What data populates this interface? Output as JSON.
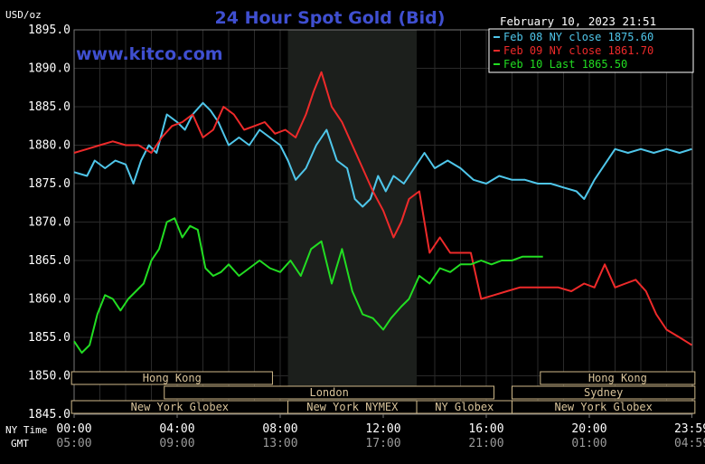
{
  "chart_data": {
    "type": "line",
    "title": "24 Hour Spot Gold (Bid)",
    "ylabel": "USD/oz",
    "ylim": [
      1845,
      1895
    ],
    "yticks": [
      "1895.0",
      "1890.0",
      "1885.0",
      "1880.0",
      "1875.0",
      "1870.0",
      "1865.0",
      "1860.0",
      "1855.0",
      "1850.0",
      "1845.0"
    ],
    "xlim": [
      0,
      24
    ],
    "x_ticks_ny": [
      "00:00",
      "04:00",
      "08:00",
      "12:00",
      "16:00",
      "20:00",
      "23:59"
    ],
    "x_ticks_gmt": [
      "05:00",
      "09:00",
      "13:00",
      "17:00",
      "21:00",
      "01:00",
      "04:59"
    ],
    "x_tick_hours": [
      0,
      4,
      8,
      12,
      16,
      20,
      23.983
    ],
    "ny_time_label": "NY Time",
    "gmt_label": "GMT",
    "timestamp": "February 10, 2023 21:51",
    "watermark": "www.kitco.com",
    "grid": true,
    "legend_placement": "top-right",
    "highlight_hours": [
      8.3,
      13.3
    ],
    "series": [
      {
        "name": "Feb 08 NY close 1875.60",
        "color": "#4fc6ea",
        "x": [
          0,
          0.5,
          0.8,
          1.2,
          1.6,
          2,
          2.3,
          2.6,
          2.9,
          3.2,
          3.6,
          4.0,
          4.3,
          4.6,
          5.0,
          5.3,
          5.6,
          6.0,
          6.4,
          6.8,
          7.2,
          7.6,
          8.0,
          8.3,
          8.6,
          9.0,
          9.4,
          9.8,
          10.2,
          10.6,
          10.9,
          11.2,
          11.5,
          11.8,
          12.1,
          12.4,
          12.8,
          13.2,
          13.6,
          14.0,
          14.5,
          15.0,
          15.5,
          16.0,
          16.5,
          17.0,
          17.5,
          18.0,
          18.5,
          19.0,
          19.5,
          19.8,
          20.2,
          20.6,
          21.0,
          21.5,
          22.0,
          22.5,
          23.0,
          23.5,
          23.98
        ],
        "y": [
          1876.5,
          1876,
          1878,
          1877,
          1878,
          1877.5,
          1875,
          1878,
          1880,
          1879,
          1884,
          1883,
          1882,
          1884,
          1885.5,
          1884.5,
          1883,
          1880,
          1881,
          1880,
          1882,
          1881,
          1880,
          1878,
          1875.5,
          1877,
          1880,
          1882,
          1878,
          1877,
          1873,
          1872,
          1873,
          1876,
          1874,
          1876,
          1875,
          1877,
          1879,
          1877,
          1878,
          1877,
          1875.5,
          1875,
          1876,
          1875.5,
          1875.5,
          1875,
          1875,
          1874.5,
          1874,
          1873,
          1875.5,
          1877.5,
          1879.5,
          1879,
          1879.5,
          1879,
          1879.5,
          1879,
          1879.5
        ]
      },
      {
        "name": "Feb 09 NY close 1861.70",
        "color": "#ee2a2a",
        "x": [
          0,
          0.5,
          1.0,
          1.5,
          2.0,
          2.5,
          3.0,
          3.4,
          3.8,
          4.2,
          4.6,
          5.0,
          5.4,
          5.8,
          6.2,
          6.6,
          7.0,
          7.4,
          7.8,
          8.2,
          8.6,
          9.0,
          9.3,
          9.6,
          10.0,
          10.4,
          10.8,
          11.2,
          11.6,
          12.0,
          12.4,
          12.7,
          13.0,
          13.4,
          13.8,
          14.2,
          14.6,
          15.0,
          15.4,
          15.8,
          16.3,
          16.8,
          17.3,
          17.8,
          18.3,
          18.8,
          19.3,
          19.8,
          20.2,
          20.6,
          21.0,
          21.4,
          21.8,
          22.2,
          22.6,
          23.0,
          23.5,
          23.98
        ],
        "y": [
          1879,
          1879.5,
          1880,
          1880.5,
          1880,
          1880,
          1879,
          1881,
          1882.5,
          1883,
          1884,
          1881,
          1882,
          1885,
          1884,
          1882,
          1882.5,
          1883,
          1881.5,
          1882,
          1881,
          1884,
          1887,
          1889.5,
          1885,
          1883,
          1880,
          1877,
          1874,
          1871.5,
          1868,
          1870,
          1873,
          1874,
          1866,
          1868,
          1866,
          1866,
          1866,
          1860,
          1860.5,
          1861,
          1861.5,
          1861.5,
          1861.5,
          1861.5,
          1861,
          1862,
          1861.5,
          1864.5,
          1861.5,
          1862,
          1862.5,
          1861,
          1858,
          1856,
          1855,
          1854
        ]
      },
      {
        "name": "Feb 10 Last 1865.50",
        "color": "#22dd22",
        "x": [
          0,
          0.3,
          0.6,
          0.9,
          1.2,
          1.5,
          1.8,
          2.1,
          2.4,
          2.7,
          3.0,
          3.3,
          3.6,
          3.9,
          4.2,
          4.5,
          4.8,
          5.1,
          5.4,
          5.7,
          6.0,
          6.4,
          6.8,
          7.2,
          7.6,
          8.0,
          8.4,
          8.8,
          9.2,
          9.6,
          10.0,
          10.4,
          10.8,
          11.2,
          11.6,
          12.0,
          12.3,
          12.7,
          13.0,
          13.4,
          13.8,
          14.2,
          14.6,
          15.0,
          15.4,
          15.8,
          16.2,
          16.6,
          17.0,
          17.4,
          17.8,
          18.2
        ],
        "y": [
          1854.5,
          1853,
          1854,
          1858,
          1860.5,
          1860,
          1858.5,
          1860,
          1861,
          1862,
          1865,
          1866.5,
          1870,
          1870.5,
          1868,
          1869.5,
          1869,
          1864,
          1863,
          1863.5,
          1864.5,
          1863,
          1864,
          1865,
          1864,
          1863.5,
          1865,
          1863,
          1866.5,
          1867.5,
          1862,
          1866.5,
          1861,
          1858,
          1857.5,
          1856,
          1857.5,
          1859,
          1860,
          1863,
          1862,
          1864,
          1863.5,
          1864.5,
          1864.5,
          1865,
          1864.5,
          1865,
          1865,
          1865.5,
          1865.5,
          1865.5
        ]
      }
    ],
    "sessions": [
      {
        "label": "Hong Kong",
        "x0": -0.1,
        "x1": 7.7,
        "row": 1
      },
      {
        "label": "London",
        "x0": 3.5,
        "x1": 16.3,
        "row": 2
      },
      {
        "label": "New York Globex",
        "x0": -0.1,
        "x1": 8.3,
        "row": 3
      },
      {
        "label": "New York NYMEX",
        "x0": 8.3,
        "x1": 13.3,
        "row": 3
      },
      {
        "label": "NY Globex",
        "x0": 13.3,
        "x1": 17.0,
        "row": 3
      },
      {
        "label": "New York Globex",
        "x0": 17.0,
        "x1": 24.1,
        "row": 3
      },
      {
        "label": "Hong Kong",
        "x0": 18.1,
        "x1": 24.1,
        "row": 1
      },
      {
        "label": "Sydney",
        "x0": 17.0,
        "x1": 24.1,
        "row": 2
      }
    ]
  }
}
